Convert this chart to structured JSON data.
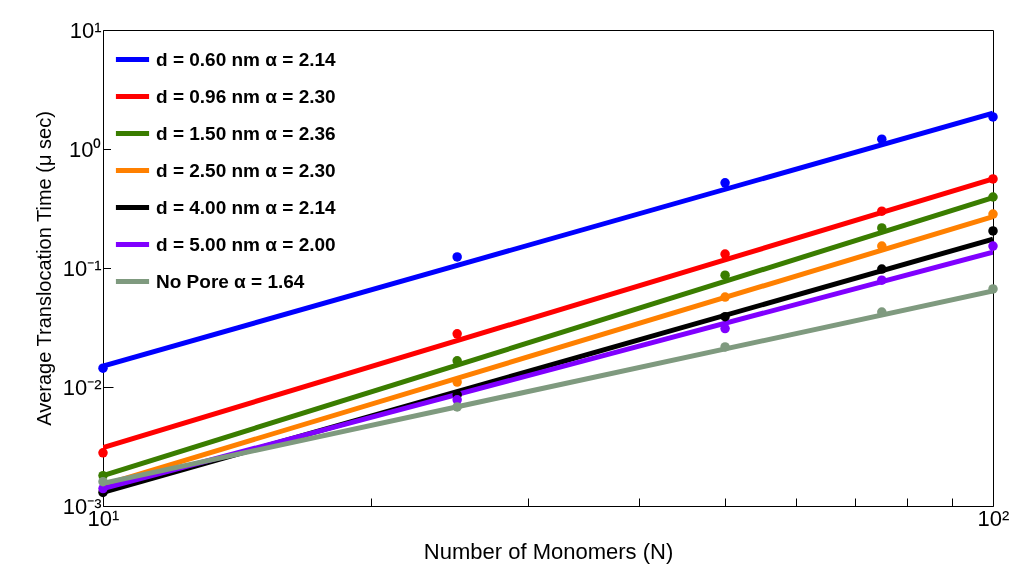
{
  "chart_data": {
    "type": "line",
    "xlabel": "Number of Monomers (N)",
    "ylabel": "Average Translocation Time (μ sec)",
    "log": "xy",
    "grid": false,
    "legend": "top left",
    "xlim": [
      10,
      100
    ],
    "ylim": [
      0.001,
      10
    ],
    "xticks": [
      {
        "value": 10,
        "label": "10¹"
      },
      {
        "value": 20,
        "label": null
      },
      {
        "value": 30,
        "label": null
      },
      {
        "value": 40,
        "label": null
      },
      {
        "value": 50,
        "label": null
      },
      {
        "value": 60,
        "label": null
      },
      {
        "value": 70,
        "label": null
      },
      {
        "value": 80,
        "label": null
      },
      {
        "value": 90,
        "label": null
      },
      {
        "value": 100,
        "label": "10²"
      }
    ],
    "yticks": [
      {
        "value": 0.001,
        "label": "10⁻³"
      },
      {
        "value": 0.01,
        "label": "10⁻²"
      },
      {
        "value": 0.1,
        "label": "10⁻¹"
      },
      {
        "value": 1,
        "label": "10⁰"
      },
      {
        "value": 10,
        "label": "10¹"
      }
    ],
    "series": [
      {
        "name": "d = 0.60 nm α = 2.14",
        "color": "#0000ff",
        "x": [
          10,
          100
        ],
        "values": [
          0.015,
          2.0
        ]
      },
      {
        "name": "d = 0.96 nm α = 2.30",
        "color": "#ff0000",
        "x": [
          10,
          100
        ],
        "values": [
          0.0031,
          0.56
        ]
      },
      {
        "name": "d = 1.50 nm α = 2.36",
        "color": "#3a7d00",
        "x": [
          10,
          100
        ],
        "values": [
          0.0018,
          0.39
        ]
      },
      {
        "name": "d = 2.50 nm α = 2.30",
        "color": "#ff8000",
        "x": [
          10,
          100
        ],
        "values": [
          0.0015,
          0.27
        ]
      },
      {
        "name": "d = 4.00 nm α = 2.14",
        "color": "#000000",
        "x": [
          10,
          100
        ],
        "values": [
          0.0013,
          0.175
        ]
      },
      {
        "name": "d = 5.00 nm α = 2.00",
        "color": "#8000ff",
        "x": [
          10,
          100
        ],
        "values": [
          0.0014,
          0.136
        ]
      },
      {
        "name": "No Pore α = 1.64",
        "color": "#7f9a7f",
        "x": [
          10,
          100
        ],
        "values": [
          0.00155,
          0.064
        ]
      },
      {
        "type": "scatter",
        "marker": "circle",
        "color": "#0000ff",
        "x": [
          10,
          25,
          50,
          75,
          100
        ],
        "values": [
          0.0144,
          0.124,
          0.52,
          1.21,
          1.86
        ]
      },
      {
        "type": "scatter",
        "marker": "circle",
        "color": "#ff0000",
        "x": [
          10,
          25,
          50,
          75,
          100
        ],
        "values": [
          0.0028,
          0.028,
          0.131,
          0.3,
          0.56
        ]
      },
      {
        "type": "scatter",
        "marker": "circle",
        "color": "#3a7d00",
        "x": [
          10,
          25,
          50,
          75,
          100
        ],
        "values": [
          0.0018,
          0.0166,
          0.087,
          0.217,
          0.395
        ]
      },
      {
        "type": "scatter",
        "marker": "circle",
        "color": "#ff8000",
        "x": [
          25,
          50,
          75,
          100
        ],
        "values": [
          0.011,
          0.057,
          0.153,
          0.284
        ]
      },
      {
        "type": "scatter",
        "marker": "circle",
        "color": "#000000",
        "x": [
          10,
          25,
          50,
          75,
          100
        ],
        "values": [
          0.0013,
          0.0086,
          0.039,
          0.098,
          0.205
        ]
      },
      {
        "type": "scatter",
        "marker": "circle",
        "color": "#8000ff",
        "x": [
          10,
          25,
          50,
          75,
          100
        ],
        "values": [
          0.0014,
          0.0078,
          0.031,
          0.079,
          0.153
        ]
      },
      {
        "type": "scatter",
        "marker": "circle",
        "color": "#7f9a7f",
        "x": [
          10,
          25,
          50,
          75,
          100
        ],
        "values": [
          0.0016,
          0.0068,
          0.0217,
          0.0427,
          0.0667
        ]
      }
    ]
  }
}
